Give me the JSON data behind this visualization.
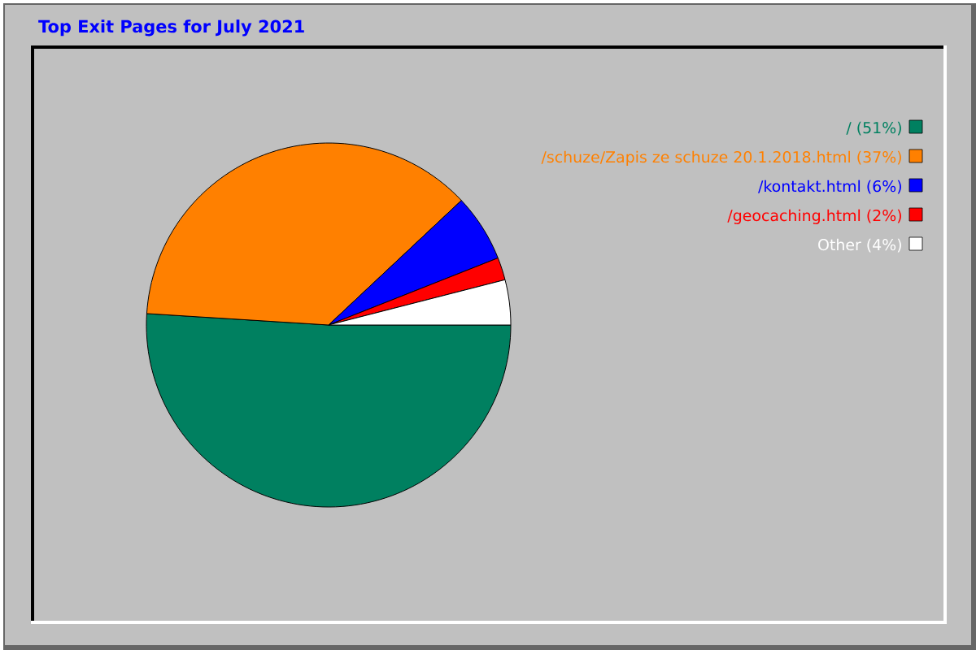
{
  "chart_data": {
    "type": "pie",
    "title": "Top Exit Pages for July 2021",
    "categories": [
      "/ (51%)",
      "/schuze/Zapis ze schuze 20.1.2018.html (37%)",
      "/kontakt.html (6%)",
      "/geocaching.html (2%)",
      "Other (4%)"
    ],
    "values": [
      51,
      37,
      6,
      2,
      4
    ],
    "colors": [
      "#008060",
      "#ff8000",
      "#0000ff",
      "#ff0000",
      "#ffffff"
    ],
    "legend": "top right"
  }
}
